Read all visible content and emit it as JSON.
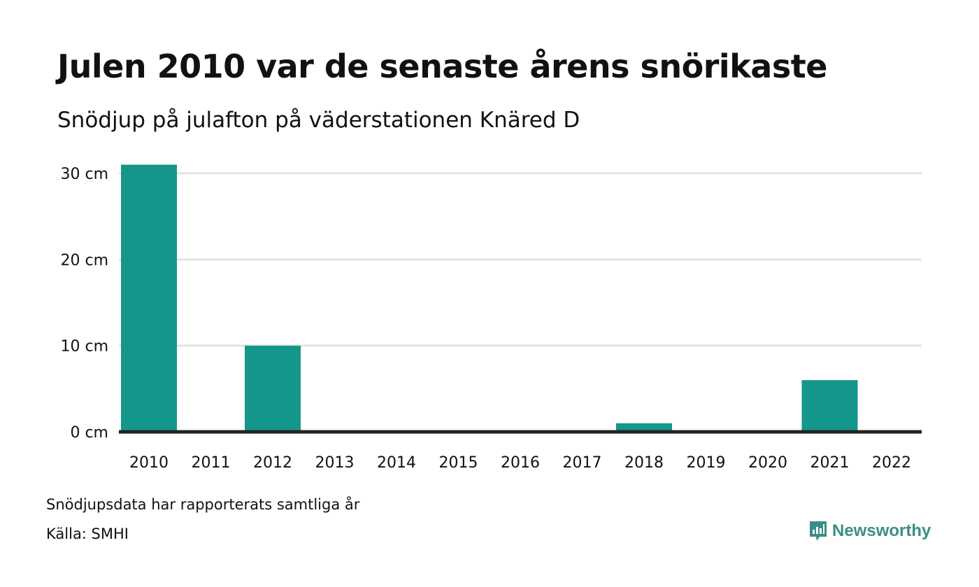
{
  "title": "Julen 2010 var de senaste årens snörikaste",
  "subtitle": "Snödjup på julafton på väderstationen Knäred D",
  "footer": {
    "note": "Snödjupsdata har rapporterats samtliga år",
    "source": "Källa: SMHI"
  },
  "brand": {
    "name": "Newsworthy",
    "icon": "newsworthy-logo-icon",
    "color": "#3b8e85"
  },
  "chart_data": {
    "type": "bar",
    "categories": [
      "2010",
      "2011",
      "2012",
      "2013",
      "2014",
      "2015",
      "2016",
      "2017",
      "2018",
      "2019",
      "2020",
      "2021",
      "2022"
    ],
    "values": [
      31,
      0,
      10,
      0,
      0,
      0,
      0,
      0,
      1,
      0,
      0,
      6,
      0
    ],
    "unit": "cm",
    "yticks": [
      0,
      10,
      20,
      30
    ],
    "ytick_labels": [
      "0 cm",
      "10 cm",
      "20 cm",
      "30 cm"
    ],
    "ylim": [
      0,
      30
    ],
    "grid": true,
    "bar_color": "#15968a",
    "grid_color": "#e3e3e3",
    "baseline_color": "#222222"
  }
}
